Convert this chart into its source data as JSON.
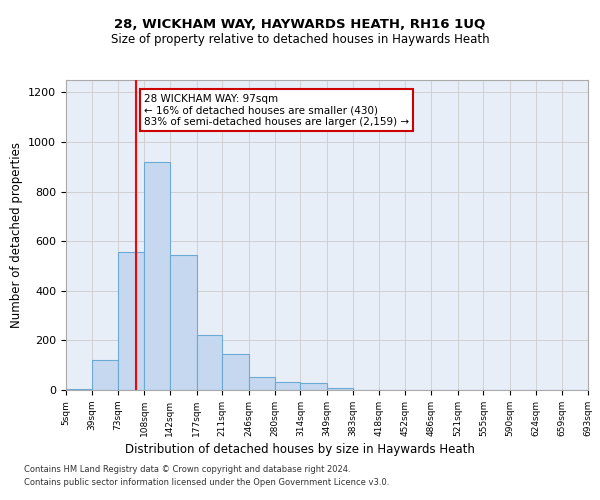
{
  "title1": "28, WICKHAM WAY, HAYWARDS HEATH, RH16 1UQ",
  "title2": "Size of property relative to detached houses in Haywards Heath",
  "xlabel": "Distribution of detached houses by size in Haywards Heath",
  "ylabel": "Number of detached properties",
  "bin_edges": [
    5,
    39,
    73,
    108,
    142,
    177,
    211,
    246,
    280,
    314,
    349,
    383,
    418,
    452,
    486,
    521,
    555,
    590,
    624,
    659,
    693
  ],
  "bar_heights": [
    5,
    120,
    555,
    920,
    545,
    220,
    145,
    52,
    32,
    28,
    10,
    0,
    0,
    0,
    0,
    0,
    0,
    0,
    0,
    0
  ],
  "bar_color": "#c5d8f0",
  "bar_edgecolor": "#6aaad4",
  "grid_color": "#cccccc",
  "background_color": "#e8eef8",
  "red_line_x": 97,
  "annotation_line1": "28 WICKHAM WAY: 97sqm",
  "annotation_line2": "← 16% of detached houses are smaller (430)",
  "annotation_line3": "83% of semi-detached houses are larger (2,159) →",
  "annotation_box_color": "#ffffff",
  "annotation_box_edgecolor": "#cc0000",
  "ylim": [
    0,
    1250
  ],
  "yticks": [
    0,
    200,
    400,
    600,
    800,
    1000,
    1200
  ],
  "tick_labels": [
    "5sqm",
    "39sqm",
    "73sqm",
    "108sqm",
    "142sqm",
    "177sqm",
    "211sqm",
    "246sqm",
    "280sqm",
    "314sqm",
    "349sqm",
    "383sqm",
    "418sqm",
    "452sqm",
    "486sqm",
    "521sqm",
    "555sqm",
    "590sqm",
    "624sqm",
    "659sqm",
    "693sqm"
  ],
  "footer1": "Contains HM Land Registry data © Crown copyright and database right 2024.",
  "footer2": "Contains public sector information licensed under the Open Government Licence v3.0."
}
